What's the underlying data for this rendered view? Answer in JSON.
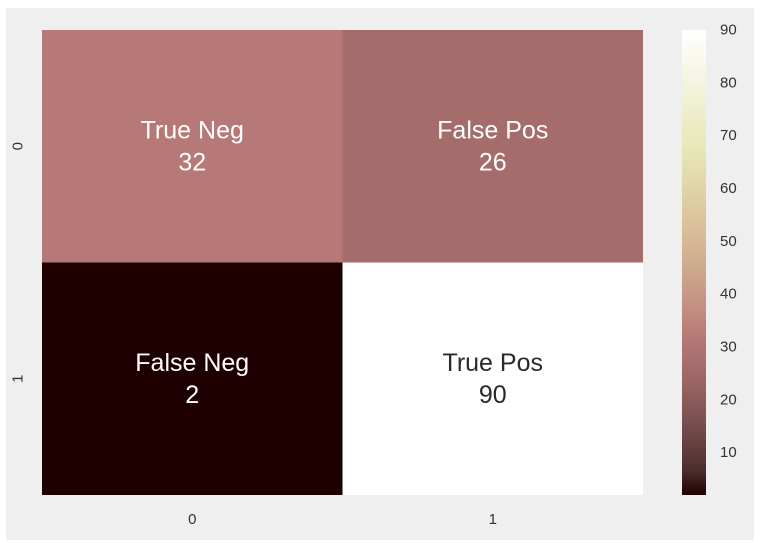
{
  "chart_data": {
    "type": "heatmap",
    "title": "",
    "xlabel": "",
    "ylabel": "",
    "x_categories": [
      "0",
      "1"
    ],
    "y_categories": [
      "0",
      "1"
    ],
    "cells": [
      [
        {
          "label": "True Neg",
          "value": 32
        },
        {
          "label": "False Pos",
          "value": 26
        }
      ],
      [
        {
          "label": "False Neg",
          "value": 2
        },
        {
          "label": "True Pos",
          "value": 90
        }
      ]
    ],
    "colorbar": {
      "range": [
        2,
        90
      ],
      "ticks": [
        10,
        20,
        30,
        40,
        50,
        60,
        70,
        80,
        90
      ],
      "colormap": "pink"
    },
    "grid": false
  },
  "colors": {
    "background": "#efefef",
    "cell_text_light": "#ffffff",
    "cell_text_dark": "#2a2a2a"
  }
}
